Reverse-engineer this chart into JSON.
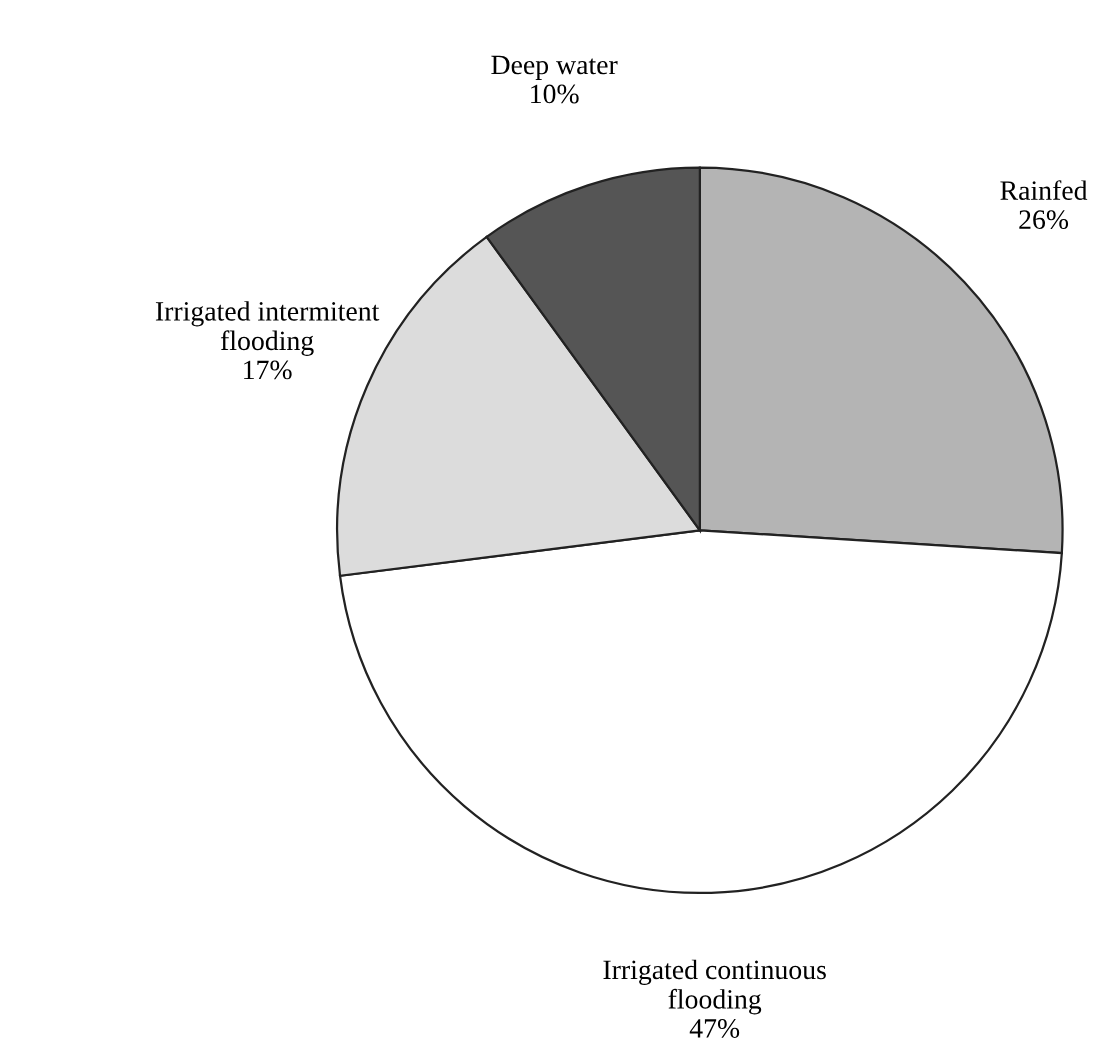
{
  "chart_data": {
    "type": "pie",
    "categories": [
      "Rainfed",
      "Irrigated continuous\nflooding",
      "Irrigated intermitent\nflooding",
      "Deep water"
    ],
    "values": [
      26,
      47,
      17,
      10
    ],
    "colors": [
      "#b4b4b4",
      "#ffffff",
      "#dcdcdc",
      "#555555"
    ],
    "value_labels": [
      "26%",
      "47%",
      "17%",
      "10%"
    ]
  }
}
